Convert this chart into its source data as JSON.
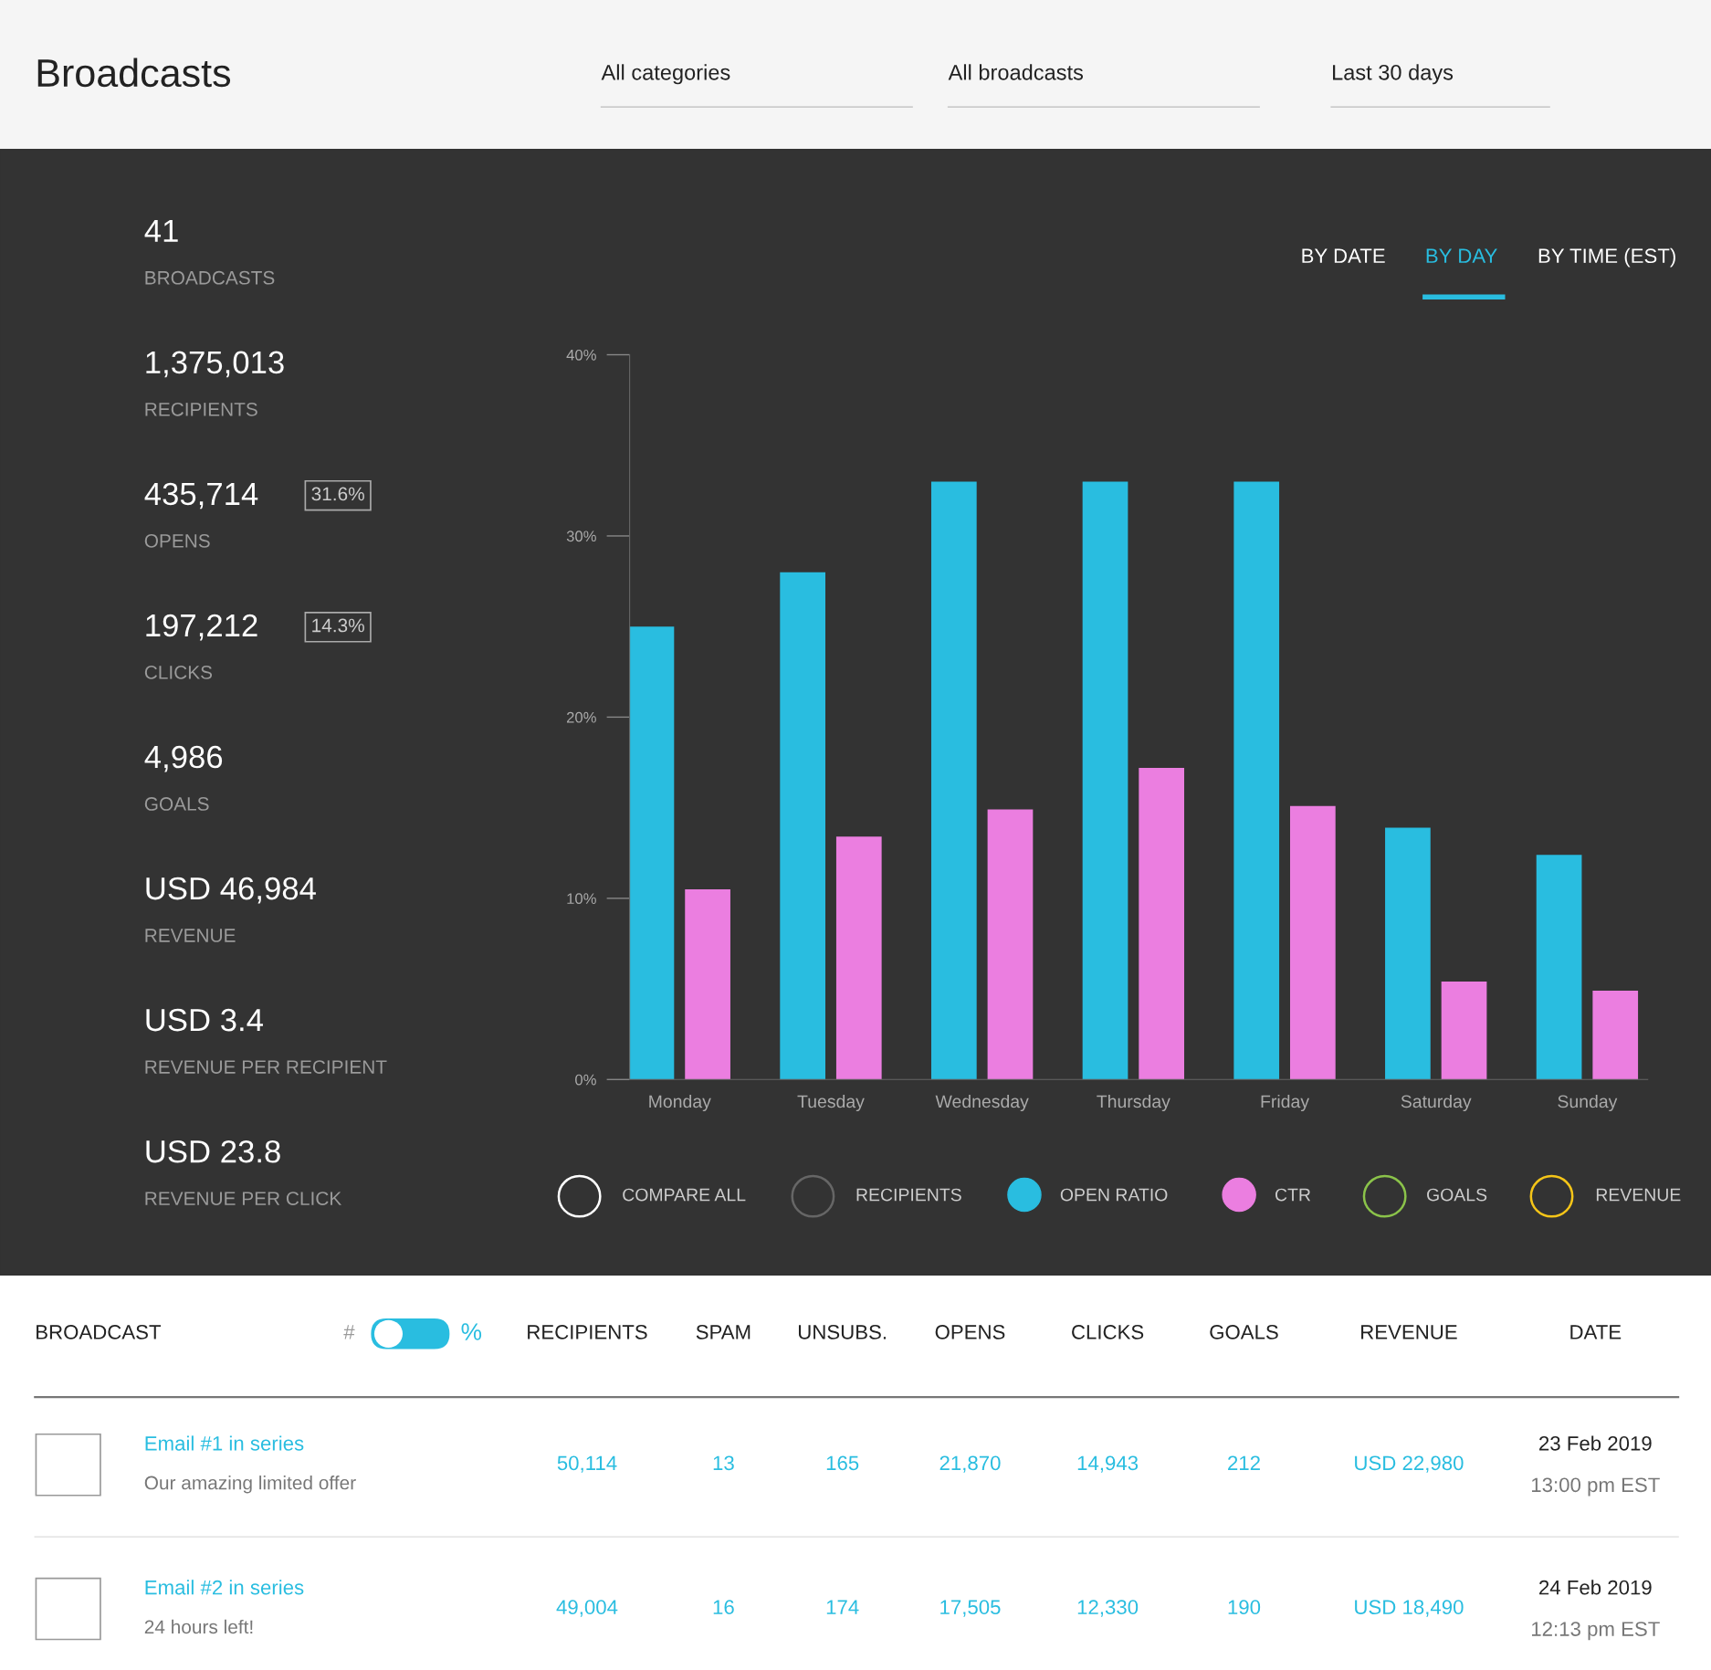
{
  "chart_data": [
    {
      "type": "other",
      "title": "Broadcasts",
      "categories": [
        "All categories",
        "All broadcasts",
        "Last 30 days"
      ]
    },
    {
      "type": "other",
      "categories": [
        "BROADCASTS",
        "RECIPIENTS",
        "OPENS",
        "CLICKS",
        "GOALS",
        "REVENUE",
        "REVENUE PER RECIPIENT",
        "REVENUE PER CLICK"
      ],
      "value_labels": [
        "41",
        "1,375,013",
        "435,714",
        "197,212",
        "4,986",
        "USD 46,984",
        "USD 3.4",
        "USD 23.8"
      ],
      "annotations": [
        "31.6%",
        "14.3%"
      ]
    },
    {
      "type": "bar",
      "categories": [
        "Monday",
        "Tuesday",
        "Wednesday",
        "Thursday",
        "Friday",
        "Saturday",
        "Sunday"
      ],
      "series": [
        {
          "name": "OPEN RATIO",
          "color": "#29bde0",
          "values": [
            25,
            28,
            33,
            33,
            33,
            13.9,
            12.4
          ]
        },
        {
          "name": "CTR",
          "color": "#eb7ee0",
          "values": [
            10.5,
            13.4,
            14.9,
            17.2,
            15.1,
            5.4,
            4.9
          ]
        }
      ],
      "ylim": [
        0,
        40
      ],
      "yticks": [
        {
          "value": 0,
          "label": "0%"
        },
        {
          "value": 10,
          "label": "10%"
        },
        {
          "value": 20,
          "label": "20%"
        },
        {
          "value": 30,
          "label": "30%"
        },
        {
          "value": 40,
          "label": "40%"
        }
      ],
      "grid": false,
      "legend": "bottom",
      "annotations": [
        "BY DATE",
        "BY DAY",
        "BY TIME (EST)",
        "COMPARE ALL",
        "RECIPIENTS",
        "GOALS",
        "REVENUE"
      ]
    },
    {
      "type": "other",
      "categories": [
        "BROADCAST",
        "#",
        "%",
        "RECIPIENTS",
        "SPAM",
        "UNSUBS.",
        "OPENS",
        "CLICKS",
        "GOALS",
        "REVENUE",
        "DATE"
      ],
      "cell_labels": [
        [
          "Email #1 in series",
          "Our amazing limited offer",
          "50,114",
          "13",
          "165",
          "21,870",
          "14,943",
          "212",
          "USD 22,980",
          "23 Feb 2019",
          "13:00 pm EST"
        ],
        [
          "Email #2 in series",
          "24 hours left!",
          "49,004",
          "16",
          "174",
          "17,505",
          "12,330",
          "190",
          "USD 18,490",
          "24 Feb 2019",
          "12:13 pm EST"
        ]
      ]
    }
  ]
}
